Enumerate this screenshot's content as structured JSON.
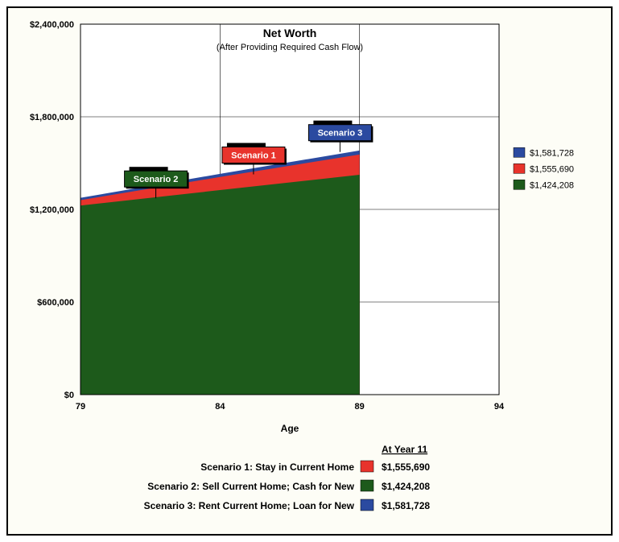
{
  "chart": {
    "type": "area",
    "title": "Net Worth",
    "subtitle": "(After Providing Required Cash Flow)",
    "x_axis_label": "Age",
    "background_color": "#fdfdf6",
    "plot_background": "#ffffff",
    "frame_border_color": "#000000",
    "grid_color": "#000000",
    "grid_line_width": 0.6,
    "xlim": [
      79,
      94
    ],
    "ylim": [
      0,
      2400000
    ],
    "ytick_step": 600000,
    "yticks": [
      "$0",
      "$600,000",
      "$1,200,000",
      "$1,800,000",
      "$2,400,000"
    ],
    "xticks": [
      79,
      84,
      89,
      94
    ],
    "data_x": [
      79,
      84,
      89
    ],
    "series": [
      {
        "name": "Scenario 3",
        "color": "#2b4aa0",
        "values": [
          1275000,
          1430000,
          1581728
        ]
      },
      {
        "name": "Scenario 1",
        "color": "#e8332c",
        "values": [
          1260000,
          1410000,
          1555690
        ]
      },
      {
        "name": "Scenario 2",
        "color": "#1d5a1b",
        "values": [
          1225000,
          1325000,
          1424208
        ]
      }
    ],
    "callouts": [
      {
        "text": "Scenario 2",
        "bg": "#1d5a1b",
        "x_age": 81.7,
        "y_val": 1345000
      },
      {
        "text": "Scenario 1",
        "bg": "#e8332c",
        "x_age": 85.2,
        "y_val": 1500000
      },
      {
        "text": "Scenario 3",
        "bg": "#2b4aa0",
        "x_age": 88.3,
        "y_val": 1645000
      }
    ],
    "right_legend": [
      {
        "color": "#2b4aa0",
        "label": "$1,581,728"
      },
      {
        "color": "#e8332c",
        "label": "$1,555,690"
      },
      {
        "color": "#1d5a1b",
        "label": "$1,424,208"
      }
    ],
    "bottom_legend": {
      "heading": "At Year 11",
      "rows": [
        {
          "label": "Scenario 1:  Stay in Current Home",
          "color": "#e8332c",
          "value": "$1,555,690"
        },
        {
          "label": "Scenario 2:  Sell Current Home; Cash for New",
          "color": "#1d5a1b",
          "value": "$1,424,208"
        },
        {
          "label": "Scenario 3:  Rent Current Home; Loan for New",
          "color": "#2b4aa0",
          "value": "$1,581,728"
        }
      ]
    }
  }
}
